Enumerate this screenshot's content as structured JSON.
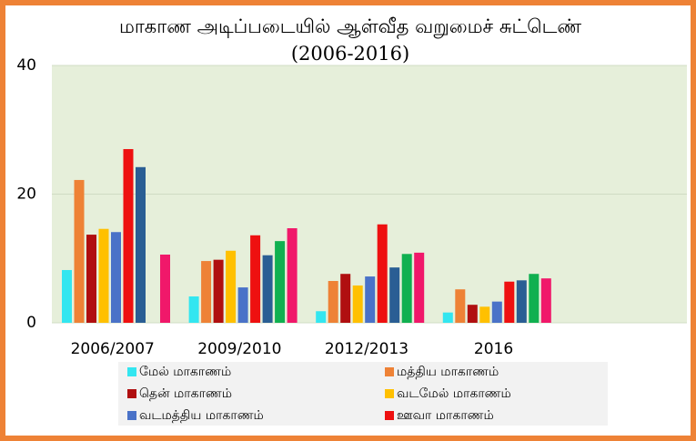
{
  "chart_data": {
    "type": "bar",
    "title": "மாகாண அடிப்படையில் ஆள்வீத வறுமைச் சுட்டெண் (2006-2016)",
    "categories": [
      "2006/2007",
      "2009/2010",
      "2012/2013",
      "2016",
      null
    ],
    "series": [
      {
        "name": "மேல் மாகாணம்",
        "color": "#33e6f0",
        "values": [
          8.2,
          4.1,
          1.8,
          1.6,
          null
        ]
      },
      {
        "name": "மத்திய மாகாணம்",
        "color": "#ee8236",
        "values": [
          22.2,
          9.6,
          6.5,
          5.2,
          null
        ]
      },
      {
        "name": "தென் மாகாணம்",
        "color": "#b00f10",
        "values": [
          13.7,
          9.8,
          7.6,
          2.8,
          null
        ]
      },
      {
        "name": "வடமேல் மாகாணம்",
        "color": "#ffc000",
        "values": [
          14.6,
          11.2,
          5.8,
          2.5,
          null
        ]
      },
      {
        "name": "வடமத்திய மாகாணம்",
        "color": "#4a72c8",
        "values": [
          14.1,
          5.5,
          7.2,
          3.3,
          null
        ]
      },
      {
        "name": "ஊவா மாகாணம்",
        "color": "#ee1010",
        "values": [
          27.0,
          13.6,
          15.3,
          6.4,
          null
        ]
      },
      {
        "color": "#2a5e94",
        "values": [
          24.2,
          10.5,
          8.6,
          6.6,
          null
        ]
      },
      {
        "color": "#10b050",
        "values": [
          null,
          12.7,
          10.7,
          7.6,
          null
        ]
      },
      {
        "color": "#f0186a",
        "values": [
          10.6,
          14.7,
          10.9,
          6.9,
          null
        ]
      }
    ],
    "ylim": [
      0,
      40
    ],
    "yticks": [
      0,
      20,
      40
    ],
    "grid": true
  }
}
